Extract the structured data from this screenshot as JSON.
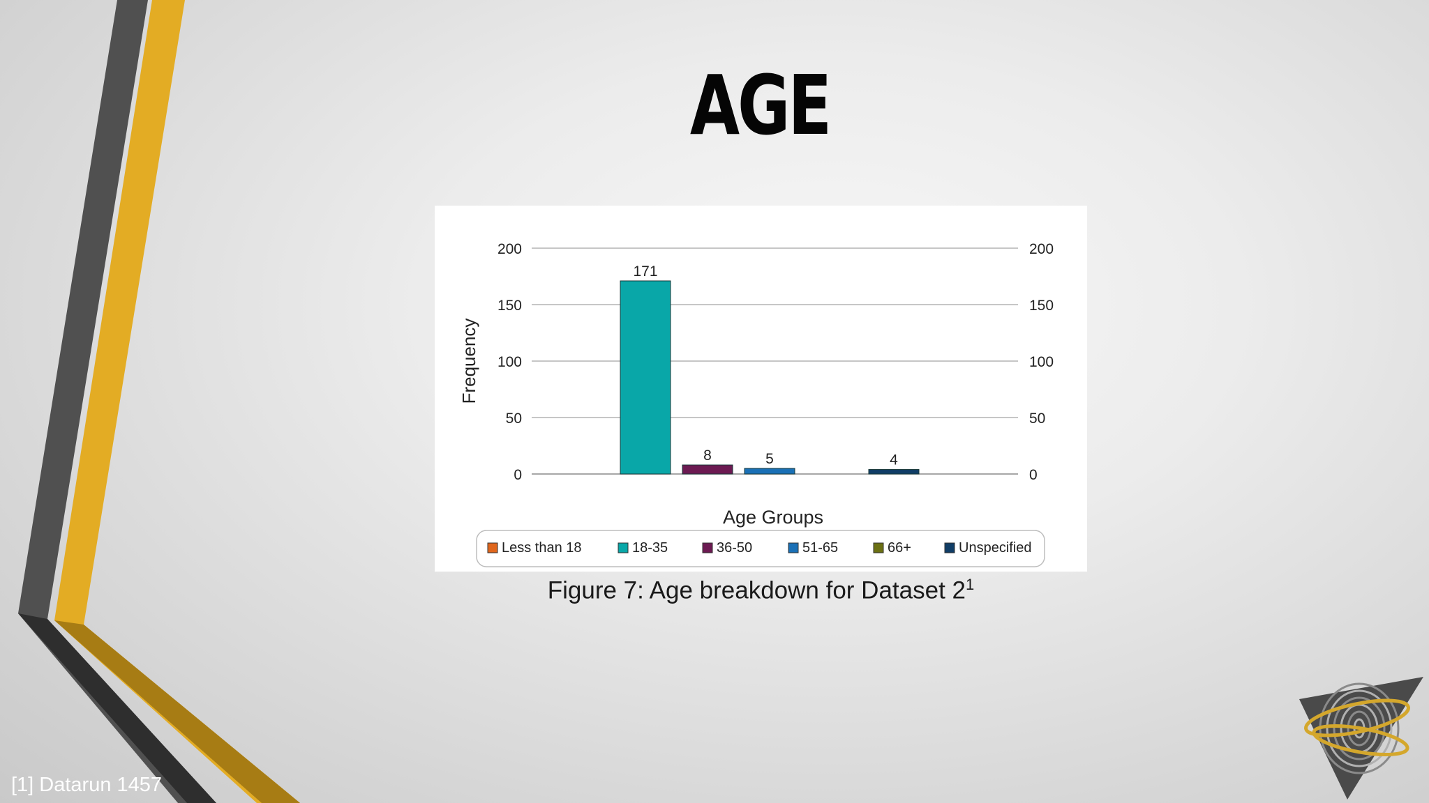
{
  "slide": {
    "title": "AGE",
    "caption": "Figure 7: Age breakdown for Dataset 2",
    "caption_ref": "1",
    "footnote": "[1] Datarun 1457"
  },
  "colors": {
    "stripe_dark": "#505050",
    "stripe_gold": "#e3ac24",
    "background": "#e9e9e9"
  },
  "logo": {
    "icon": "fingerprint-triangle-logo"
  },
  "chart_data": {
    "type": "bar",
    "xlabel": "Age Groups",
    "ylabel": "Frequency",
    "ylim": [
      0,
      200
    ],
    "yticks": [
      0,
      50,
      100,
      150,
      200
    ],
    "secondary_y_axis": true,
    "grid": true,
    "legend_position": "bottom",
    "categories": [
      "Less than 18",
      "18-35",
      "36-50",
      "51-65",
      "66+",
      "Unspecified"
    ],
    "values": [
      0,
      171,
      8,
      5,
      0,
      4
    ],
    "data_labels": [
      "",
      "171",
      "8",
      "5",
      "",
      "4"
    ],
    "colors": [
      "#e0661c",
      "#09a7a8",
      "#6c1a52",
      "#1a70b6",
      "#6b7013",
      "#103d66"
    ]
  }
}
